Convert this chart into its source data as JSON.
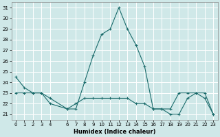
{
  "xlabel": "Humidex (Indice chaleur)",
  "xlim": [
    -0.5,
    23.5
  ],
  "ylim": [
    20.5,
    31.5
  ],
  "yticks": [
    21,
    22,
    23,
    24,
    25,
    26,
    27,
    28,
    29,
    30,
    31
  ],
  "xticks": [
    0,
    1,
    2,
    3,
    4,
    6,
    7,
    8,
    9,
    10,
    11,
    12,
    13,
    14,
    15,
    16,
    17,
    18,
    19,
    20,
    21,
    22,
    23
  ],
  "xtick_labels": [
    "0",
    "1",
    "2",
    "3",
    "4",
    "6",
    "7",
    "8",
    "9",
    "10",
    "11",
    "12",
    "13",
    "14",
    "15",
    "16",
    "17",
    "18",
    "19",
    "20",
    "21",
    "22",
    "23"
  ],
  "bg_color": "#cfe8e8",
  "grid_color": "#ffffff",
  "line_color": "#1a6b6b",
  "series1_x": [
    0,
    1,
    2,
    3,
    4,
    6,
    7,
    8,
    9,
    10,
    11,
    12,
    13,
    14,
    15,
    16,
    17,
    18,
    19,
    20,
    21,
    22,
    23
  ],
  "series1_y": [
    24.5,
    23.5,
    23.0,
    23.0,
    22.5,
    21.5,
    21.5,
    24.0,
    26.5,
    28.5,
    29.0,
    31.0,
    29.0,
    27.5,
    25.5,
    21.5,
    21.5,
    21.0,
    21.0,
    22.5,
    23.0,
    22.5,
    21.0
  ],
  "series2_x": [
    0,
    1,
    2,
    3,
    4,
    6,
    7,
    8,
    9,
    10,
    11,
    12,
    13,
    14,
    15,
    16,
    17,
    18,
    19,
    20,
    21,
    22,
    23
  ],
  "series2_y": [
    23.0,
    23.0,
    23.0,
    23.0,
    22.0,
    21.5,
    22.0,
    22.5,
    22.5,
    22.5,
    22.5,
    22.5,
    22.5,
    22.0,
    22.0,
    21.5,
    21.5,
    21.5,
    23.0,
    23.0,
    23.0,
    23.0,
    21.0
  ],
  "marker_size": 3,
  "line_width": 0.8,
  "tick_fontsize": 5.0,
  "xlabel_fontsize": 6.0
}
